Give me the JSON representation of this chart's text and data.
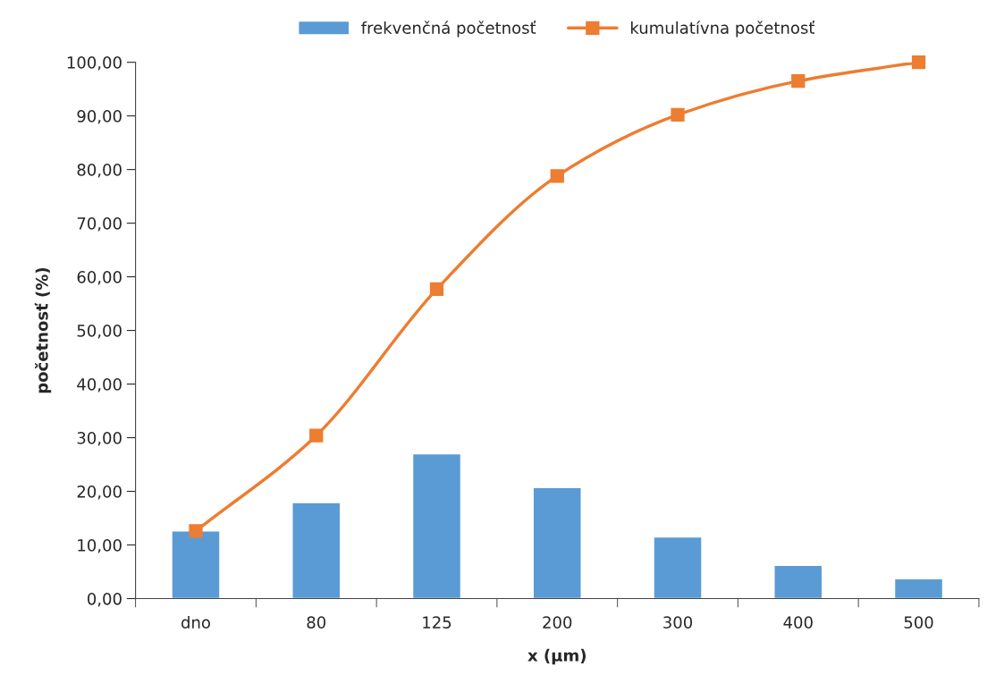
{
  "chart_data": {
    "type": "bar",
    "xlabel": "x (µm)",
    "ylabel": "početnosť (%)",
    "categories": [
      "dno",
      "80",
      "125",
      "200",
      "300",
      "400",
      "500"
    ],
    "series": [
      {
        "name": "frekvenčná početnosť",
        "color": "#5b9bd5",
        "values": [
          12.6,
          17.9,
          27.0,
          20.7,
          11.5,
          6.2,
          3.7
        ]
      },
      {
        "name": "kumulatívna početnosť",
        "type": "line",
        "color": "#ed7d31",
        "marker": "square",
        "values": [
          12.6,
          30.4,
          57.7,
          78.8,
          90.2,
          96.5,
          100.0
        ]
      }
    ],
    "ylim": [
      0,
      100
    ],
    "yticks": [
      {
        "value": 0,
        "label": "0,00"
      },
      {
        "value": 10,
        "label": "10,00"
      },
      {
        "value": 20,
        "label": "20,00"
      },
      {
        "value": 30,
        "label": "30,00"
      },
      {
        "value": 40,
        "label": "40,00"
      },
      {
        "value": 50,
        "label": "50,00"
      },
      {
        "value": 60,
        "label": "60,00"
      },
      {
        "value": 70,
        "label": "70,00"
      },
      {
        "value": 80,
        "label": "80,00"
      },
      {
        "value": 90,
        "label": "90,00"
      },
      {
        "value": 100,
        "label": "100,00"
      }
    ],
    "grid": false,
    "legend": "top"
  }
}
